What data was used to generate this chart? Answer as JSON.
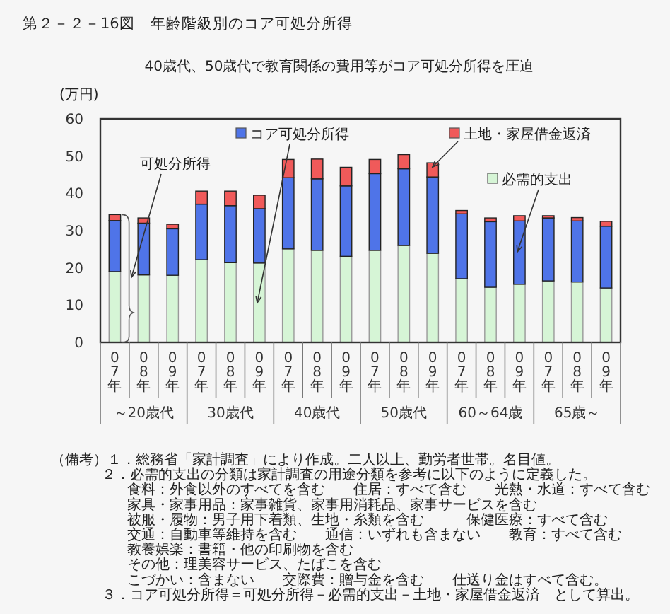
{
  "chart_data": {
    "type": "bar",
    "stacked": true,
    "title": "第２－２－16図　年齢階級別のコア可処分所得",
    "subtitle": "40歳代、50歳代で教育関係の費用等がコア可処分所得を圧迫",
    "ylabel": "(万円)",
    "categories": [
      "07年",
      "08年",
      "09年",
      "07年",
      "08年",
      "09年",
      "07年",
      "08年",
      "09年",
      "07年",
      "08年",
      "09年",
      "07年",
      "08年",
      "09年",
      "07年",
      "08年",
      "09年"
    ],
    "series": [
      {
        "name": "必需的支出",
        "color": "#d6f5d6",
        "values": [
          19,
          18.1,
          18,
          22.2,
          21.4,
          21.3,
          25.1,
          24.7,
          23.1,
          24.7,
          26,
          23.9,
          17.1,
          14.8,
          15.6,
          16.5,
          16.2,
          14.6
        ]
      },
      {
        "name": "コア可処分所得",
        "color": "#4f74e8",
        "values": [
          13.7,
          13.9,
          12.5,
          14.9,
          15.3,
          14.6,
          19.1,
          19.2,
          18.9,
          20.6,
          20.6,
          20.5,
          17.4,
          17.6,
          17,
          16.9,
          16.4,
          16.6
        ]
      },
      {
        "name": "土地・家屋借金返済",
        "color": "#f05a5a",
        "values": [
          1.6,
          1.4,
          1.2,
          3.5,
          3.9,
          3.6,
          4.9,
          5.3,
          5,
          3.8,
          3.8,
          3.8,
          0.9,
          1,
          1.4,
          0.6,
          0.9,
          1.3
        ]
      }
    ],
    "ylim": [
      0,
      60
    ],
    "yticks": [
      0,
      10,
      20,
      30,
      40,
      50,
      60
    ],
    "grid": false,
    "legend": "top",
    "annotations": [
      "～20歳代",
      "30歳代",
      "40歳代",
      "50歳代",
      "60～64歳",
      "65歳～",
      "可処分所得",
      "（備考）１．総務省「家計調査」により作成。二人以上、勤労者世帯。名目値。",
      "２．必需的支出の分類は家計調査の用途分類を参考に以下のように定義した。",
      "食料：外食以外のすべてを含む　　住居：すべて含む　　光熱・水道：すべて含む",
      "家具・家事用品：家事雑貨、家事用消耗品、家事サービスを含む",
      "被服・履物：男子用下着類、生地・糸類を含む　　　保健医療：すべて含む",
      "交通：自動車等維持を含む　　通信：いずれも含まない　　教育：すべて含む",
      "教養娯楽：書籍・他の印刷物を含む",
      "その他：理美容サービス、たばこを含む",
      "こづかい：含まない　　交際費：贈与金を含む　　仕送り金はすべて含む。",
      "３．コア可処分所得＝可処分所得－必需的支出－土地・家屋借金返済　として算出。"
    ]
  }
}
